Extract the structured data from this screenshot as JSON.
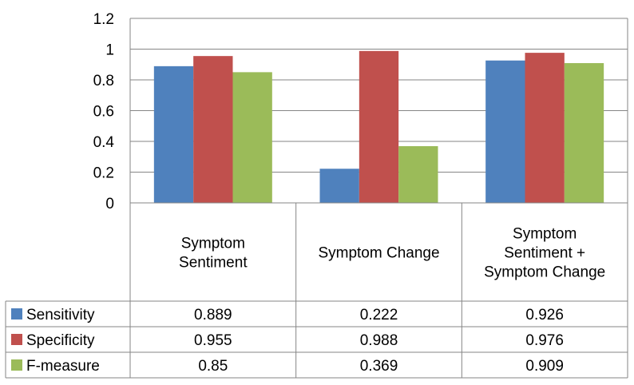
{
  "chart_data": {
    "type": "bar",
    "categories": [
      [
        "Symptom",
        "Sentiment"
      ],
      [
        "Symptom Change"
      ],
      [
        "Symptom",
        "Sentiment +",
        "Symptom Change"
      ]
    ],
    "series": [
      {
        "name": "Sensitivity",
        "values": [
          0.889,
          0.222,
          0.926
        ],
        "labels": [
          "0.889",
          "0.222",
          "0.926"
        ],
        "color": "#4F81BD"
      },
      {
        "name": "Specificity",
        "values": [
          0.955,
          0.988,
          0.976
        ],
        "labels": [
          "0.955",
          "0.988",
          "0.976"
        ],
        "color": "#C0504D"
      },
      {
        "name": "F-measure",
        "values": [
          0.85,
          0.369,
          0.909
        ],
        "labels": [
          "0.85",
          "0.369",
          "0.909"
        ],
        "color": "#9BBB59"
      }
    ],
    "yticks": [
      "0",
      "0.2",
      "0.4",
      "0.6",
      "0.8",
      "1",
      "1.2"
    ],
    "ylim": [
      0,
      1.2
    ],
    "grid": true,
    "legend": "data-table-left",
    "title": "",
    "xlabel": "",
    "ylabel": ""
  }
}
